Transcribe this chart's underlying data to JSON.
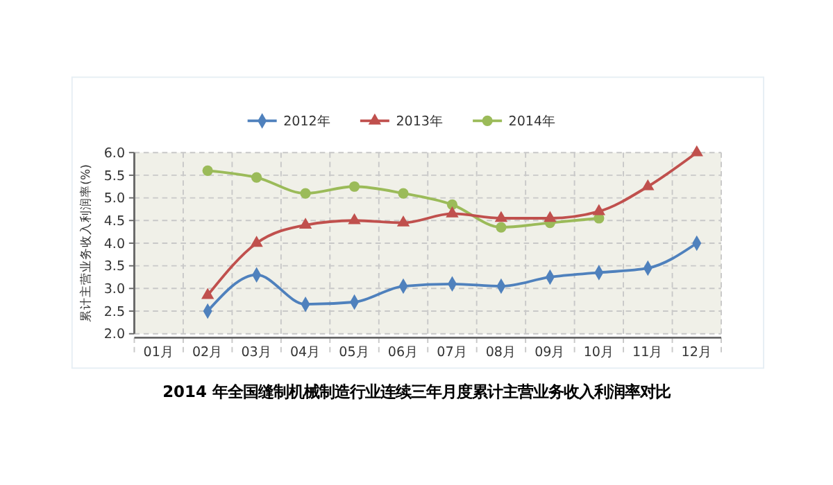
{
  "chart_data": {
    "type": "line",
    "title": "2014 年全国缝制机械制造行业连续三年月度累计主营业务收入利润率对比",
    "ylabel": "累计主营业务收入利润率(%)",
    "categories": [
      "01月",
      "02月",
      "03月",
      "04月",
      "05月",
      "06月",
      "07月",
      "08月",
      "09月",
      "10月",
      "11月",
      "12月"
    ],
    "series": [
      {
        "name": "2012年",
        "color": "#4f81bd",
        "marker": "diamond",
        "values": [
          null,
          2.5,
          3.3,
          2.65,
          2.7,
          3.05,
          3.1,
          3.05,
          3.25,
          3.35,
          3.45,
          4.0
        ]
      },
      {
        "name": "2013年",
        "color": "#c0504d",
        "marker": "triangle",
        "values": [
          null,
          2.85,
          4.0,
          4.4,
          4.5,
          4.45,
          4.65,
          4.55,
          4.55,
          4.7,
          5.25,
          6.0
        ]
      },
      {
        "name": "2014年",
        "color": "#9bbb59",
        "marker": "circle",
        "values": [
          null,
          5.6,
          5.45,
          5.1,
          5.25,
          5.1,
          4.85,
          4.35,
          4.45,
          4.55,
          null,
          null
        ]
      }
    ],
    "ylim": [
      2,
      6
    ],
    "yticks": [
      {
        "value": 2,
        "label": "2.0"
      },
      {
        "value": 2.5,
        "label": "2.5"
      },
      {
        "value": 3,
        "label": "3.0"
      },
      {
        "value": 3.5,
        "label": "3.5"
      },
      {
        "value": 4,
        "label": "4.0"
      },
      {
        "value": 4.5,
        "label": "4.5"
      },
      {
        "value": 5,
        "label": "5.0"
      },
      {
        "value": 5.5,
        "label": "5.5"
      },
      {
        "value": 6,
        "label": "6.0"
      }
    ],
    "grid": true,
    "legend": "top",
    "line_style": "solid"
  }
}
